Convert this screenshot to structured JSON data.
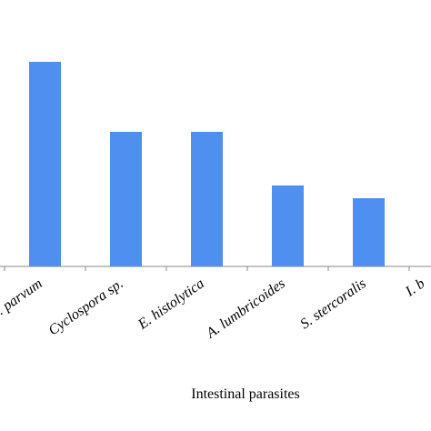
{
  "chart_data": {
    "type": "bar",
    "x_label": "Intestinal parasites",
    "categories": [
      ". parvum",
      "Cyclospora sp.",
      "E. histolytica",
      "A. lumbricoides",
      "S. stercoralis",
      "I. b"
    ],
    "values": [
      225,
      148,
      148,
      89,
      75,
      null
    ],
    "color": "#4f8ff0",
    "ylim": [
      0,
      250
    ]
  }
}
